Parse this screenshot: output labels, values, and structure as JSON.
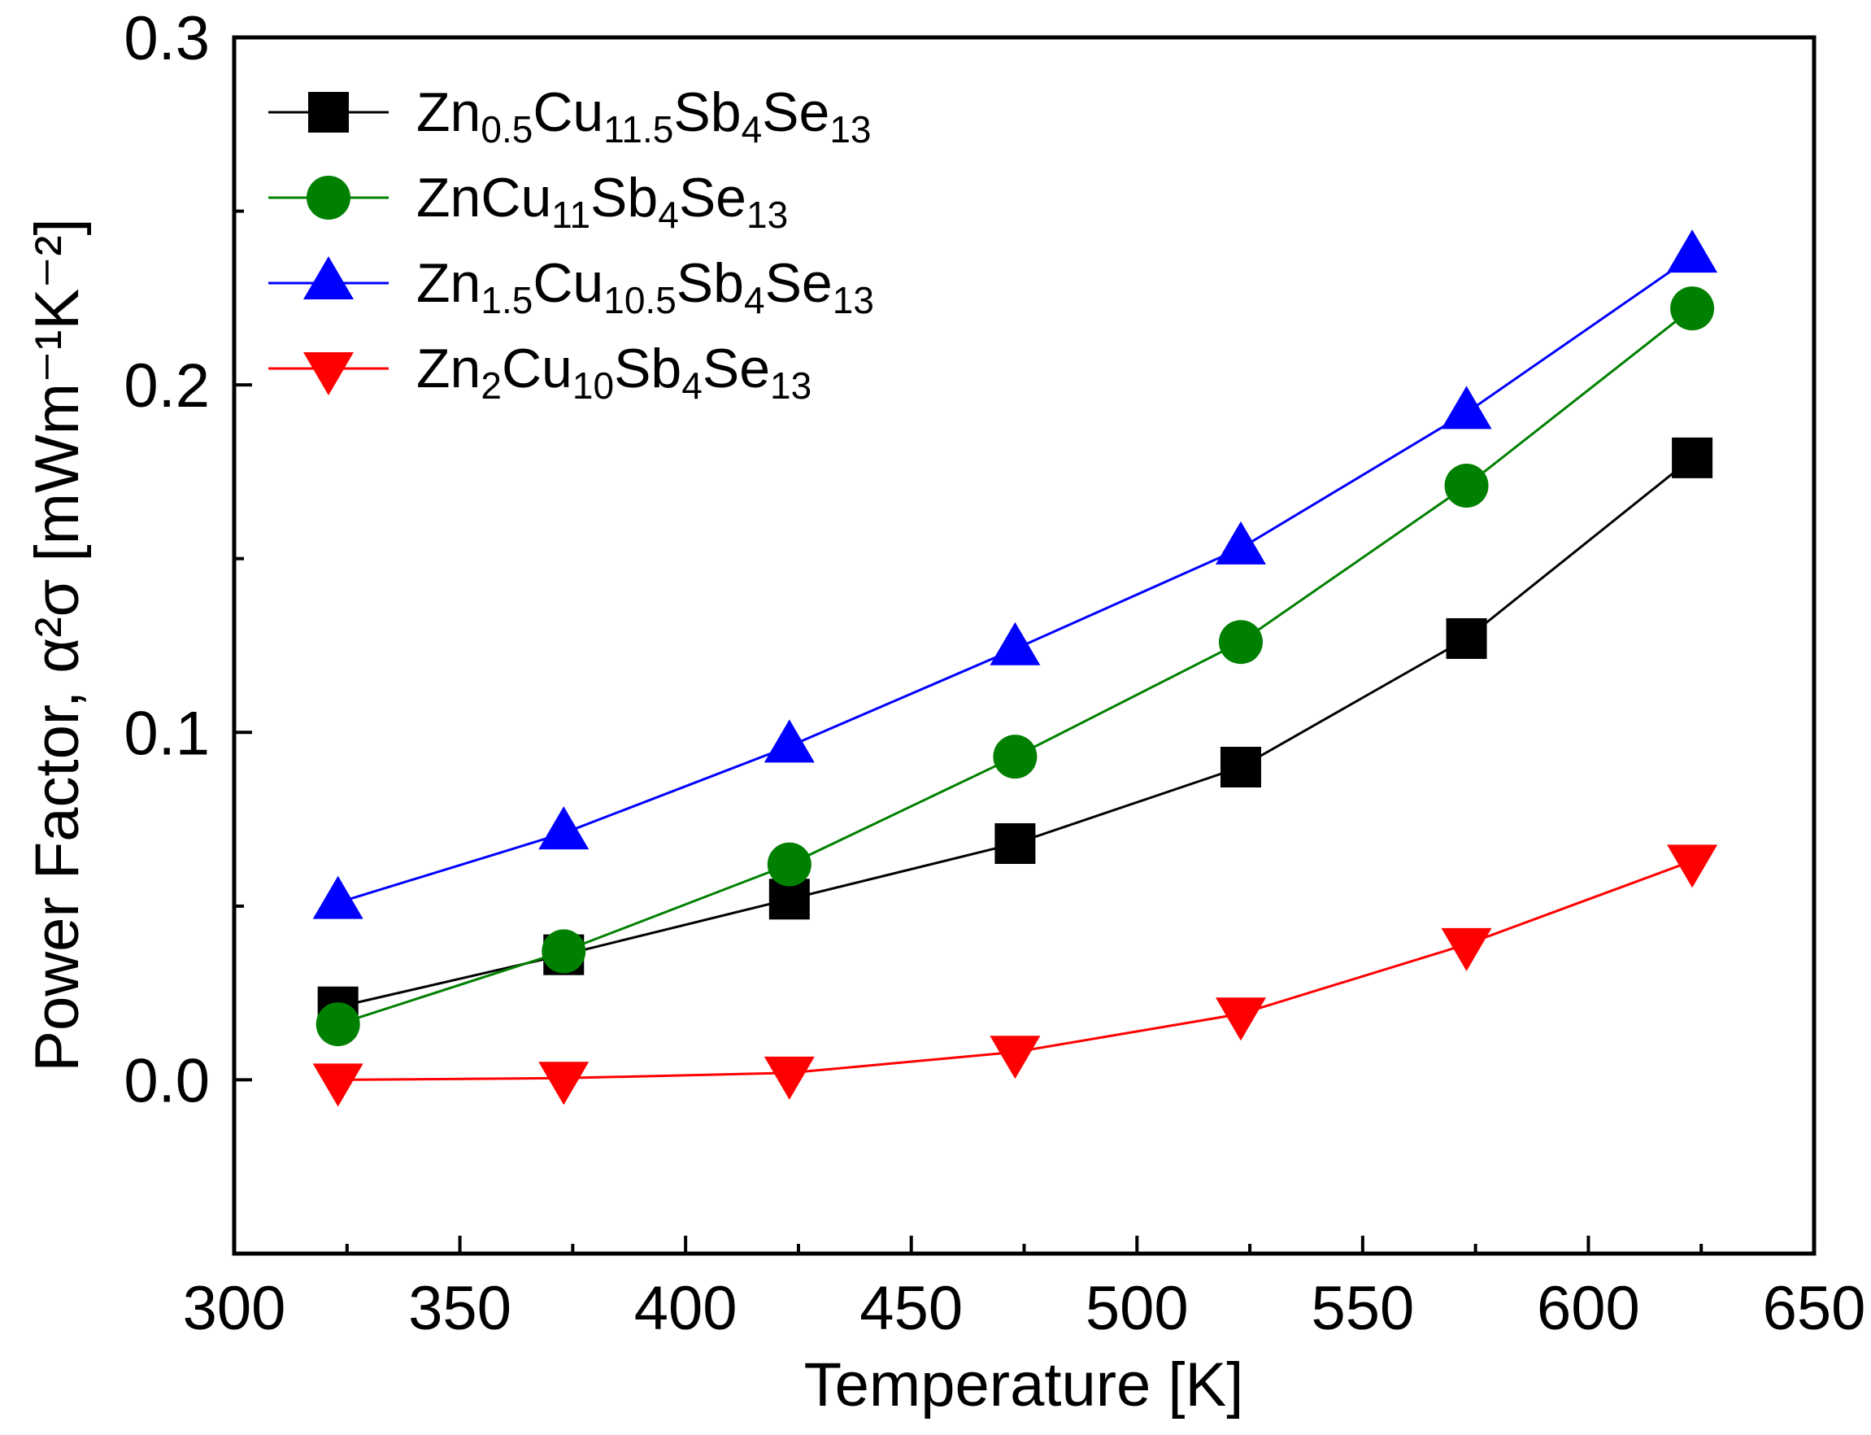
{
  "chart_data": {
    "type": "line",
    "title": "",
    "xlabel": "Temperature [K]",
    "ylabel": "Power Factor, α²σ [mWm⁻¹K⁻²]",
    "xlim": [
      300,
      650
    ],
    "ylim": [
      -0.05,
      0.3
    ],
    "xticks": [
      300,
      350,
      400,
      450,
      500,
      550,
      600,
      650
    ],
    "yticks": [
      0.0,
      0.1,
      0.2,
      0.3
    ],
    "xtick_labels": [
      "300",
      "350",
      "400",
      "450",
      "500",
      "550",
      "600",
      "650"
    ],
    "ytick_labels": [
      "0.0",
      "0.1",
      "0.2",
      "0.3"
    ],
    "legend_position": "top-left",
    "grid": false,
    "x": [
      323,
      373,
      423,
      473,
      523,
      573,
      623
    ],
    "series": [
      {
        "name": "Zn0.5Cu11.5Sb4Se13",
        "label_parts": [
          [
            "Zn",
            ""
          ],
          [
            "0.5",
            "sub"
          ],
          [
            "Cu",
            ""
          ],
          [
            "11.5",
            "sub"
          ],
          [
            "Sb",
            ""
          ],
          [
            "4",
            "sub"
          ],
          [
            "Se",
            ""
          ],
          [
            "13",
            "sub"
          ]
        ],
        "color": "#000000",
        "marker": "square",
        "values": [
          0.021,
          0.036,
          0.052,
          0.068,
          0.09,
          0.127,
          0.179
        ]
      },
      {
        "name": "ZnCu11Sb4Se13",
        "label_parts": [
          [
            "ZnCu",
            ""
          ],
          [
            "11",
            "sub"
          ],
          [
            "Sb",
            ""
          ],
          [
            "4",
            "sub"
          ],
          [
            "Se",
            ""
          ],
          [
            "13",
            "sub"
          ]
        ],
        "color": "#008000",
        "marker": "circle",
        "values": [
          0.016,
          0.037,
          0.062,
          0.093,
          0.126,
          0.171,
          0.222
        ]
      },
      {
        "name": "Zn1.5Cu10.5Sb4Se13",
        "label_parts": [
          [
            "Zn",
            ""
          ],
          [
            "1.5",
            "sub"
          ],
          [
            "Cu",
            ""
          ],
          [
            "10.5",
            "sub"
          ],
          [
            "Sb",
            ""
          ],
          [
            "4",
            "sub"
          ],
          [
            "Se",
            ""
          ],
          [
            "13",
            "sub"
          ]
        ],
        "color": "#0000ff",
        "marker": "triangle-up",
        "values": [
          0.051,
          0.071,
          0.096,
          0.124,
          0.153,
          0.192,
          0.237
        ]
      },
      {
        "name": "Zn2Cu10Sb4Se13",
        "label_parts": [
          [
            "Zn",
            ""
          ],
          [
            "2",
            "sub"
          ],
          [
            "Cu",
            ""
          ],
          [
            "10",
            "sub"
          ],
          [
            "Sb",
            ""
          ],
          [
            "4",
            "sub"
          ],
          [
            "Se",
            ""
          ],
          [
            "13",
            "sub"
          ]
        ],
        "color": "#ff0000",
        "marker": "triangle-down",
        "values": [
          0.0,
          0.0005,
          0.002,
          0.008,
          0.019,
          0.039,
          0.063
        ]
      }
    ]
  }
}
